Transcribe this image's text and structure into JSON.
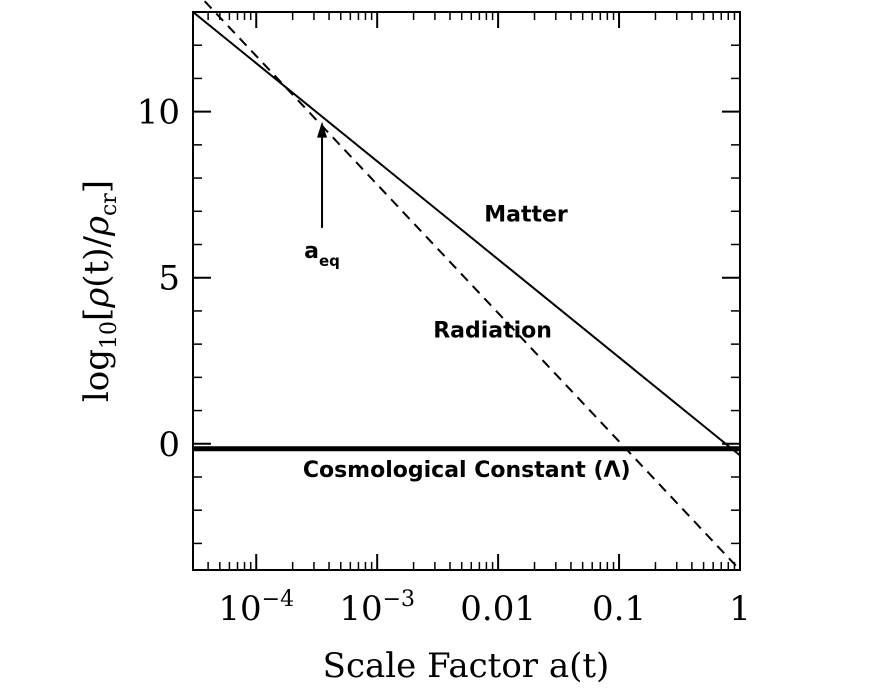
{
  "chart_data": {
    "type": "line",
    "xscale": "log",
    "xlim": [
      3e-05,
      1
    ],
    "ylim": [
      -3.8,
      13.0
    ],
    "xlabel": "Scale Factor a(t)",
    "ylabel_parts": {
      "pre": "log",
      "sub": "10",
      "open": "[",
      "rho_num": "ρ",
      "paren": "(t)/",
      "rho_den": "ρ",
      "den_sub": "cr",
      "close": "]"
    },
    "xticks": [
      {
        "value": 0.0001,
        "base": "10",
        "exp": "−4"
      },
      {
        "value": 0.001,
        "base": "10",
        "exp": "−3"
      },
      {
        "value": 0.01,
        "text": "0.01"
      },
      {
        "value": 0.1,
        "text": "0.1"
      },
      {
        "value": 1,
        "text": "1"
      }
    ],
    "yticks": [
      {
        "value": 0,
        "text": "0"
      },
      {
        "value": 5,
        "text": "5"
      },
      {
        "value": 10,
        "text": "10"
      }
    ],
    "series": [
      {
        "name": "Matter",
        "style": "solid",
        "x": [
          3e-05,
          1
        ],
        "y": [
          13.0,
          -0.35
        ]
      },
      {
        "name": "Radiation",
        "style": "dashed",
        "x": [
          3e-05,
          1
        ],
        "y": [
          13.7,
          -3.8
        ]
      },
      {
        "name": "Cosmological Constant (Λ)",
        "style": "thick",
        "x": [
          3e-05,
          1
        ],
        "y": [
          -0.15,
          -0.15
        ]
      }
    ],
    "annotations": [
      {
        "name": "a_eq",
        "base": "a",
        "sub": "eq",
        "arrow_x": 0.00035,
        "arrow_y_start": 6.5,
        "arrow_y_end": 9.7,
        "text_x": 0.00035,
        "text_y": 5.6
      },
      {
        "name": "matter-label",
        "x": 0.017,
        "y": 6.7
      },
      {
        "name": "radiation-label",
        "x": 0.009,
        "y": 3.2
      },
      {
        "name": "lambda-label",
        "x": 0.0055,
        "y": -1.0
      }
    ]
  }
}
